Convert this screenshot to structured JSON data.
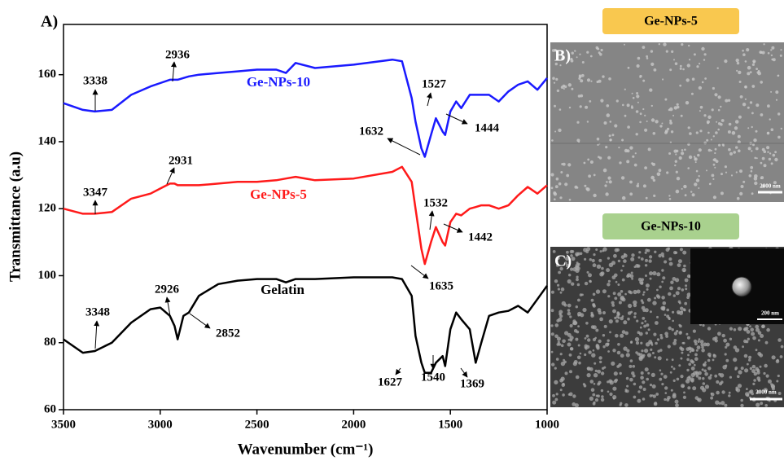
{
  "chart_data": {
    "type": "line",
    "panel_label": "A)",
    "x_label": "Wavenumber (cm⁻¹)",
    "y_label": "Transmittance (a.u)",
    "x": [
      3500,
      3400,
      3338,
      3250,
      3150,
      3050,
      3000,
      2950,
      2926,
      2910,
      2880,
      2852,
      2800,
      2700,
      2600,
      2500,
      2400,
      2350,
      2300,
      2200,
      2000,
      1800,
      1750,
      1700,
      1680,
      1650,
      1632,
      1600,
      1575,
      1540,
      1527,
      1500,
      1470,
      1444,
      1400,
      1369,
      1340,
      1300,
      1250,
      1200,
      1150,
      1100,
      1050,
      1000
    ],
    "series": [
      {
        "name": "Gelatin",
        "color": "#000000",
        "values": [
          81,
          77,
          77.5,
          80,
          86,
          90,
          90.5,
          88,
          85,
          81,
          88,
          89,
          94,
          97.5,
          98.5,
          99,
          99,
          98,
          99,
          99,
          99.5,
          99.5,
          99,
          94,
          82,
          74,
          71,
          71,
          74,
          76,
          73,
          84,
          89,
          87,
          84,
          74,
          80,
          88,
          89,
          89.5,
          91,
          89,
          93,
          97
        ]
      },
      {
        "name": "Ge-NPs-5",
        "color": "#ff1a1a",
        "values": [
          120,
          118.5,
          118.5,
          119,
          123,
          124.5,
          126,
          127.5,
          127.5,
          127,
          127,
          127,
          127,
          127.5,
          128,
          128,
          128.5,
          129,
          129.5,
          128.5,
          129,
          131,
          132.5,
          128,
          120,
          108,
          103.5,
          110,
          114.5,
          110,
          109,
          116,
          118.5,
          118,
          120,
          120.5,
          121,
          121,
          120,
          121,
          124,
          126.5,
          124.5,
          127
        ]
      },
      {
        "name": "Ge-NPs-10",
        "color": "#1a1aff",
        "values": [
          151.5,
          149.5,
          149,
          149.5,
          154,
          156.5,
          157.5,
          158.5,
          158.5,
          158.5,
          159,
          159.5,
          160,
          160.5,
          161,
          161.5,
          161.5,
          160.5,
          163.5,
          162,
          163,
          164.5,
          164,
          153,
          146,
          138,
          135.5,
          142,
          147,
          143,
          142,
          149,
          152,
          150,
          154,
          154,
          154,
          154,
          152,
          155,
          157,
          158,
          155.5,
          159
        ]
      }
    ],
    "xlim": [
      3500,
      1000
    ],
    "ylim": [
      60,
      175
    ],
    "xticks": [
      3500,
      3000,
      2500,
      2000,
      1500,
      1000
    ],
    "yticks": [
      60,
      80,
      100,
      120,
      140,
      160
    ],
    "annotations": [
      "2936",
      "3338",
      "1527",
      "1632",
      "1444",
      "2931",
      "3347",
      "1532",
      "1442",
      "1635",
      "2926",
      "3348",
      "2852",
      "1627",
      "1540",
      "1369"
    ]
  },
  "panels": [
    {
      "label": "B)",
      "title": "Ge-NPs-5",
      "scale_bar": "2000 nm"
    },
    {
      "label": "C)",
      "title": "Ge-NPs-10",
      "scale_bar": "2000 nm",
      "inset_scale_bar": "200 nm"
    }
  ]
}
